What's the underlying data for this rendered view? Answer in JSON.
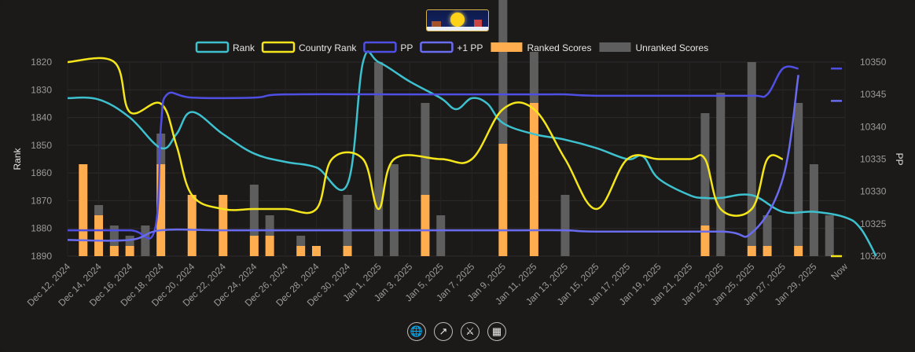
{
  "controls": [
    {
      "name": "globe-icon",
      "glyph": "🌐"
    },
    {
      "name": "trend-icon",
      "glyph": "↗"
    },
    {
      "name": "sword-icon",
      "glyph": "⚔"
    },
    {
      "name": "calendar-icon",
      "glyph": "▦"
    }
  ],
  "chart_data": {
    "type": "line",
    "x": [
      "Dec 12, 2024",
      "Dec 14, 2024",
      "Dec 16, 2024",
      "Dec 18, 2024",
      "Dec 20, 2024",
      "Dec 22, 2024",
      "Dec 24, 2024",
      "Dec 26, 2024",
      "Dec 28, 2024",
      "Dec 30, 2024",
      "Jan 1, 2025",
      "Jan 3, 2025",
      "Jan 5, 2025",
      "Jan 7, 2025",
      "Jan 9, 2025",
      "Jan 11, 2025",
      "Jan 13, 2025",
      "Jan 15, 2025",
      "Jan 17, 2025",
      "Jan 19, 2025",
      "Jan 21, 2025",
      "Jan 23, 2025",
      "Jan 25, 2025",
      "Jan 27, 2025",
      "Jan 29, 2025",
      "Now"
    ],
    "legend": [
      {
        "name": "Rank",
        "color": "#3ec1cf",
        "kind": "line"
      },
      {
        "name": "Country Rank",
        "color": "#f4e61a",
        "kind": "line"
      },
      {
        "name": "PP",
        "color": "#4f4fe3",
        "kind": "line"
      },
      {
        "name": "+1 PP",
        "color": "#6a6cf0",
        "kind": "line"
      },
      {
        "name": "Ranked Scores",
        "color": "#ffad4f",
        "kind": "bar"
      },
      {
        "name": "Unranked Scores",
        "color": "#5e5e5e",
        "kind": "bar"
      }
    ],
    "y_left": {
      "label": "Rank",
      "ticks": [
        1820,
        1830,
        1840,
        1850,
        1860,
        1870,
        1880,
        1890
      ],
      "range": [
        1820,
        1890
      ]
    },
    "y_right": {
      "label": "PP",
      "ticks": [
        10350,
        10345,
        10340,
        10335,
        10330,
        10325,
        10320
      ],
      "range": [
        10320,
        10350
      ]
    },
    "rank_series": [
      [
        0,
        1833
      ],
      [
        1,
        1833.5
      ],
      [
        2,
        1840
      ],
      [
        3,
        1851
      ],
      [
        3.5,
        1846
      ],
      [
        4,
        1838
      ],
      [
        5,
        1846
      ],
      [
        6,
        1853
      ],
      [
        7,
        1856
      ],
      [
        8,
        1858
      ],
      [
        9,
        1864
      ],
      [
        9.5,
        1820
      ],
      [
        10,
        1820
      ],
      [
        11,
        1827
      ],
      [
        12,
        1833
      ],
      [
        12.5,
        1837
      ],
      [
        13,
        1833
      ],
      [
        13.5,
        1835
      ],
      [
        14,
        1842
      ],
      [
        15,
        1846
      ],
      [
        16,
        1848
      ],
      [
        17,
        1851
      ],
      [
        18,
        1855
      ],
      [
        18.5,
        1854
      ],
      [
        19,
        1862
      ],
      [
        20,
        1868
      ],
      [
        20.5,
        1869
      ],
      [
        21,
        1869
      ],
      [
        22,
        1868
      ],
      [
        23,
        1874
      ],
      [
        24,
        1874
      ],
      [
        25,
        1876
      ],
      [
        25.5,
        1880
      ],
      [
        26,
        1890
      ]
    ],
    "country_rank_series": [
      [
        0,
        1820
      ],
      [
        1.5,
        1820
      ],
      [
        2,
        1838
      ],
      [
        3,
        1835
      ],
      [
        3.5,
        1850
      ],
      [
        4,
        1868
      ],
      [
        5,
        1873
      ],
      [
        6,
        1873
      ],
      [
        7,
        1873
      ],
      [
        8,
        1873
      ],
      [
        8.5,
        1855
      ],
      [
        9.5,
        1855
      ],
      [
        10,
        1873
      ],
      [
        10.5,
        1855
      ],
      [
        12,
        1855
      ],
      [
        13,
        1855
      ],
      [
        14,
        1837
      ],
      [
        15,
        1837
      ],
      [
        16,
        1855
      ],
      [
        17,
        1873
      ],
      [
        18,
        1855
      ],
      [
        19,
        1855
      ],
      [
        20,
        1855
      ],
      [
        20.5,
        1855
      ],
      [
        21,
        1873
      ],
      [
        22,
        1873
      ],
      [
        22.5,
        1855
      ],
      [
        23,
        1855
      ]
    ],
    "country_rank_now": 1890,
    "pp_series": [
      [
        0,
        10324
      ],
      [
        2,
        10324
      ],
      [
        2.8,
        10324
      ],
      [
        3,
        10340
      ],
      [
        3.2,
        10345
      ],
      [
        4,
        10344.5
      ],
      [
        6,
        10344.5
      ],
      [
        7,
        10345
      ],
      [
        11,
        10345
      ],
      [
        12,
        10345
      ],
      [
        15,
        10345
      ],
      [
        16,
        10345
      ],
      [
        17,
        10344.8
      ],
      [
        20,
        10344.8
      ],
      [
        22,
        10344.8
      ],
      [
        22.5,
        10345
      ],
      [
        23,
        10349
      ],
      [
        23.5,
        10349
      ]
    ],
    "pp_now": 10349,
    "plus1_series": [
      [
        0,
        10322.5
      ],
      [
        2,
        10322.5
      ],
      [
        3,
        10324
      ],
      [
        5,
        10324
      ],
      [
        8,
        10324
      ],
      [
        14,
        10324
      ],
      [
        16,
        10324
      ],
      [
        17,
        10323.8
      ],
      [
        21,
        10323.8
      ],
      [
        22,
        10323.6
      ],
      [
        23,
        10332
      ],
      [
        23.5,
        10348
      ]
    ],
    "plus1_now": 10344,
    "ranked_bars": [
      [
        1,
        9
      ],
      [
        2,
        5
      ],
      [
        3,
        3
      ],
      [
        4,
        3
      ],
      [
        5,
        8
      ],
      [
        6,
        3
      ],
      [
        7,
        3
      ],
      [
        8,
        3
      ],
      [
        9,
        1
      ],
      [
        9.5,
        1
      ],
      [
        10,
        1
      ],
      [
        12,
        3
      ],
      [
        14,
        5
      ],
      [
        16,
        3
      ],
      [
        17,
        8
      ],
      [
        22,
        4
      ],
      [
        23,
        1
      ],
      [
        24,
        1
      ],
      [
        24.5,
        1
      ]
    ],
    "bars": [
      {
        "x": 0.5,
        "ranked": 9,
        "unranked": 0
      },
      {
        "x": 1,
        "ranked": 4,
        "unranked": 1
      },
      {
        "x": 1.5,
        "ranked": 1,
        "unranked": 2
      },
      {
        "x": 2,
        "ranked": 1,
        "unranked": 1
      },
      {
        "x": 2.5,
        "ranked": 0,
        "unranked": 3
      },
      {
        "x": 3,
        "ranked": 9,
        "unranked": 3
      },
      {
        "x": 4,
        "ranked": 6,
        "unranked": 0
      },
      {
        "x": 5,
        "ranked": 6,
        "unranked": 0
      },
      {
        "x": 6,
        "ranked": 2,
        "unranked": 5
      },
      {
        "x": 6.5,
        "ranked": 2,
        "unranked": 2
      },
      {
        "x": 7.5,
        "ranked": 1,
        "unranked": 1
      },
      {
        "x": 8,
        "ranked": 1,
        "unranked": 0
      },
      {
        "x": 9,
        "ranked": 1,
        "unranked": 5
      },
      {
        "x": 10,
        "ranked": 0,
        "unranked": 19
      },
      {
        "x": 10.5,
        "ranked": 0,
        "unranked": 9
      },
      {
        "x": 11.5,
        "ranked": 6,
        "unranked": 9
      },
      {
        "x": 12,
        "ranked": 0,
        "unranked": 4
      },
      {
        "x": 14,
        "ranked": 11,
        "unranked": 19
      },
      {
        "x": 15,
        "ranked": 15,
        "unranked": 5
      },
      {
        "x": 16,
        "ranked": 0,
        "unranked": 6
      },
      {
        "x": 20.5,
        "ranked": 3,
        "unranked": 11
      },
      {
        "x": 21,
        "ranked": 0,
        "unranked": 16
      },
      {
        "x": 22,
        "ranked": 1,
        "unranked": 18
      },
      {
        "x": 22.5,
        "ranked": 1,
        "unranked": 3
      },
      {
        "x": 23.5,
        "ranked": 1,
        "unranked": 14
      },
      {
        "x": 24,
        "ranked": 0,
        "unranked": 9
      },
      {
        "x": 24.5,
        "ranked": 0,
        "unranked": 4
      }
    ]
  }
}
